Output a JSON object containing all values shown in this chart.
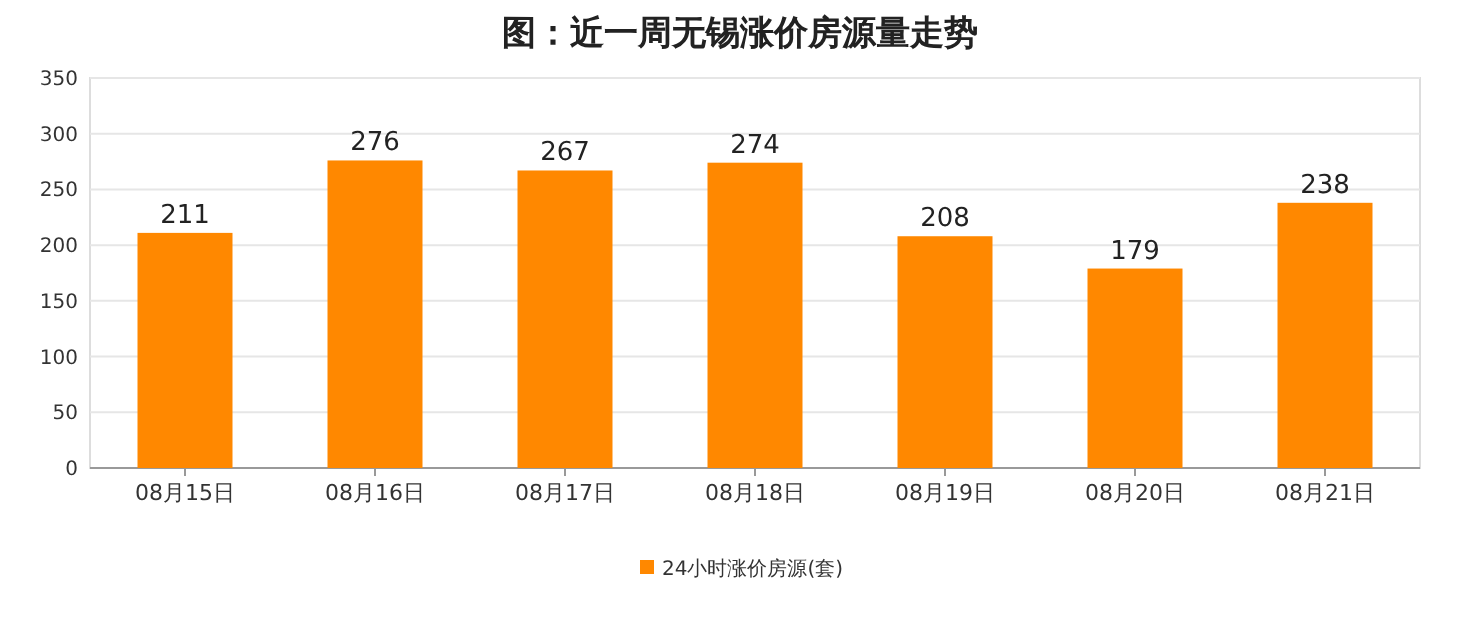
{
  "chart_data": {
    "type": "bar",
    "title": "图：近一周无锡涨价房源量走势",
    "categories": [
      "08月15日",
      "08月16日",
      "08月17日",
      "08月18日",
      "08月19日",
      "08月20日",
      "08月21日"
    ],
    "series": [
      {
        "name": "24小时涨价房源(套)",
        "color": "#ff8800",
        "values": [
          211,
          276,
          267,
          274,
          208,
          179,
          238
        ]
      }
    ],
    "ylim": [
      0,
      350
    ],
    "yticks": [
      0,
      50,
      100,
      150,
      200,
      250,
      300,
      350
    ],
    "grid": "y",
    "legend": "bottom",
    "data_labels": true
  }
}
